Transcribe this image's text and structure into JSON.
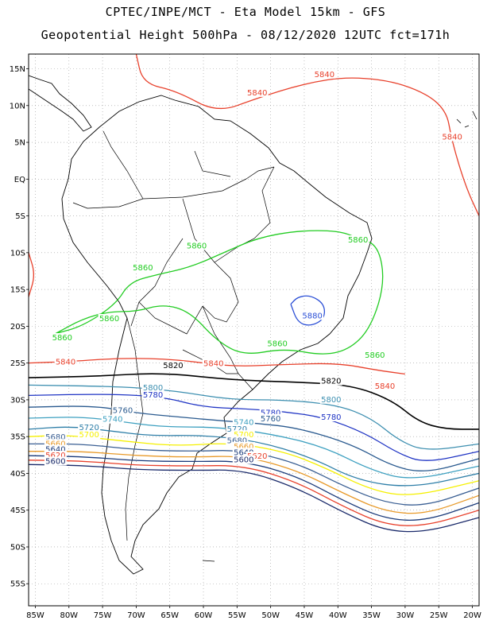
{
  "header": {
    "title": "CPTEC/INPE/MCT -  Eta Model 15km - GFS",
    "subtitle": "Geopotential Height 500hPa - 08/12/2020 12UTC fct=171h"
  },
  "map": {
    "lon_range": [
      -86,
      -19
    ],
    "lat_range": [
      -58,
      17
    ],
    "lat_ticks": [
      {
        "v": 15,
        "label": "15N"
      },
      {
        "v": 10,
        "label": "10N"
      },
      {
        "v": 5,
        "label": "5N"
      },
      {
        "v": 0,
        "label": "EQ"
      },
      {
        "v": -5,
        "label": "5S"
      },
      {
        "v": -10,
        "label": "10S"
      },
      {
        "v": -15,
        "label": "15S"
      },
      {
        "v": -20,
        "label": "20S"
      },
      {
        "v": -25,
        "label": "25S"
      },
      {
        "v": -30,
        "label": "30S"
      },
      {
        "v": -35,
        "label": "35S"
      },
      {
        "v": -40,
        "label": "40S"
      },
      {
        "v": -45,
        "label": "45S"
      },
      {
        "v": -50,
        "label": "50S"
      },
      {
        "v": -55,
        "label": "55S"
      }
    ],
    "lon_ticks": [
      {
        "v": -85,
        "label": "85W"
      },
      {
        "v": -80,
        "label": "80W"
      },
      {
        "v": -75,
        "label": "75W"
      },
      {
        "v": -70,
        "label": "70W"
      },
      {
        "v": -65,
        "label": "65W"
      },
      {
        "v": -60,
        "label": "60W"
      },
      {
        "v": -55,
        "label": "55W"
      },
      {
        "v": -50,
        "label": "50W"
      },
      {
        "v": -45,
        "label": "45W"
      },
      {
        "v": -40,
        "label": "40W"
      },
      {
        "v": -35,
        "label": "35W"
      },
      {
        "v": -30,
        "label": "30W"
      },
      {
        "v": -25,
        "label": "25W"
      },
      {
        "v": -20,
        "label": "20W"
      }
    ],
    "grid": true,
    "contours": [
      {
        "value": "5840",
        "color": "#e8412c",
        "pts": [
          [
            -70,
            17
          ],
          [
            -69,
            13
          ],
          [
            -64,
            12
          ],
          [
            -58,
            9
          ],
          [
            -52,
            11
          ],
          [
            -45,
            13
          ],
          [
            -38,
            14
          ],
          [
            -30,
            13
          ],
          [
            -24,
            10
          ],
          [
            -23,
            5
          ],
          [
            -21,
            -1
          ],
          [
            -19,
            -5
          ]
        ],
        "labels": [
          [
            -52,
            11.5
          ],
          [
            -42,
            14
          ],
          [
            -23,
            5.5
          ]
        ]
      },
      {
        "value": "5840",
        "color": "#e8412c",
        "pts": [
          [
            -86,
            -10
          ],
          [
            -85,
            -13
          ],
          [
            -86,
            -16
          ]
        ],
        "labels": []
      },
      {
        "value": "5860",
        "color": "#22cc22",
        "pts": [
          [
            -82,
            -21
          ],
          [
            -78,
            -19
          ],
          [
            -74,
            -18
          ],
          [
            -70,
            -18
          ],
          [
            -66,
            -17
          ],
          [
            -62,
            -18
          ],
          [
            -58,
            -22
          ],
          [
            -54,
            -24
          ],
          [
            -48,
            -23
          ],
          [
            -42,
            -24
          ],
          [
            -38,
            -23
          ],
          [
            -35,
            -20
          ],
          [
            -33,
            -14
          ],
          [
            -34,
            -9
          ],
          [
            -37,
            -8
          ],
          [
            -40,
            -7
          ],
          [
            -46,
            -7
          ],
          [
            -52,
            -8
          ],
          [
            -57,
            -10
          ],
          [
            -62,
            -12
          ],
          [
            -67,
            -13
          ],
          [
            -71,
            -14
          ],
          [
            -73,
            -17
          ],
          [
            -78,
            -20
          ],
          [
            -82,
            -21
          ]
        ],
        "labels": [
          [
            -61,
            -9.3
          ],
          [
            -69,
            -12.3
          ],
          [
            -37,
            -8.5
          ],
          [
            -74,
            -19.2
          ],
          [
            -81,
            -21.8
          ],
          [
            -49,
            -22.6
          ],
          [
            -34.5,
            -24.2
          ]
        ]
      },
      {
        "value": "5880",
        "color": "#2b4fd6",
        "pts": [
          [
            -47,
            -17
          ],
          [
            -46,
            -16
          ],
          [
            -44,
            -15.8
          ],
          [
            -42,
            -17
          ],
          [
            -42,
            -19
          ],
          [
            -44,
            -20
          ],
          [
            -46,
            -19.5
          ],
          [
            -47,
            -17
          ]
        ],
        "labels": [
          [
            -43.8,
            -18.8
          ]
        ]
      },
      {
        "value": "5840",
        "color": "#e8412c",
        "pts": [
          [
            -86,
            -25
          ],
          [
            -80,
            -24.8
          ],
          [
            -72,
            -24.3
          ],
          [
            -64,
            -24.5
          ],
          [
            -56,
            -25.5
          ],
          [
            -48,
            -25.2
          ],
          [
            -40,
            -25
          ],
          [
            -34,
            -26
          ],
          [
            -30,
            -26.5
          ]
        ],
        "labels": [
          [
            -80.5,
            -25.1
          ],
          [
            -58.5,
            -25.3
          ],
          [
            -33,
            -28.4
          ]
        ]
      },
      {
        "value": "5820",
        "color": "#000000",
        "pts": [
          [
            -86,
            -27
          ],
          [
            -76,
            -26.8
          ],
          [
            -66,
            -26.3
          ],
          [
            -56,
            -27.3
          ],
          [
            -46,
            -27.6
          ],
          [
            -38,
            -28
          ],
          [
            -32,
            -30
          ],
          [
            -28,
            -33
          ],
          [
            -24,
            -34
          ],
          [
            -19,
            -34
          ]
        ],
        "labels": [
          [
            -64.5,
            -25.6
          ],
          [
            -41,
            -27.7
          ]
        ]
      },
      {
        "value": "5800",
        "color": "#3d8fb0",
        "pts": [
          [
            -86,
            -28
          ],
          [
            -72,
            -28.2
          ],
          [
            -64,
            -28.8
          ],
          [
            -56,
            -30
          ],
          [
            -48,
            -30
          ],
          [
            -40,
            -30.7
          ],
          [
            -35,
            -32.5
          ],
          [
            -31,
            -35.5
          ],
          [
            -27,
            -37
          ],
          [
            -19,
            -36
          ]
        ],
        "labels": [
          [
            -67.5,
            -28.6
          ],
          [
            -41,
            -30.2
          ]
        ]
      },
      {
        "value": "5780",
        "color": "#1f34c4",
        "pts": [
          [
            -86,
            -29.4
          ],
          [
            -74,
            -29.2
          ],
          [
            -66,
            -29.6
          ],
          [
            -60,
            -31
          ],
          [
            -54,
            -31.2
          ],
          [
            -48,
            -31.6
          ],
          [
            -42,
            -32.4
          ],
          [
            -36,
            -34.5
          ],
          [
            -31,
            -37.3
          ],
          [
            -27,
            -38.6
          ],
          [
            -19,
            -37
          ]
        ],
        "labels": [
          [
            -67.5,
            -29.6
          ],
          [
            -50,
            -32
          ],
          [
            -41,
            -32.6
          ]
        ]
      },
      {
        "value": "5760",
        "color": "#2a5a8f",
        "pts": [
          [
            -86,
            -31
          ],
          [
            -76,
            -30.8
          ],
          [
            -70,
            -31.8
          ],
          [
            -64,
            -32.3
          ],
          [
            -58,
            -32.8
          ],
          [
            -52,
            -33.2
          ],
          [
            -46,
            -33.8
          ],
          [
            -38,
            -36
          ],
          [
            -32,
            -39
          ],
          [
            -27,
            -40
          ],
          [
            -19,
            -38
          ]
        ],
        "labels": [
          [
            -72,
            -31.7
          ],
          [
            -50,
            -32.8
          ]
        ]
      },
      {
        "value": "5740",
        "color": "#3da0c0",
        "pts": [
          [
            -86,
            -32.5
          ],
          [
            -78,
            -32.3
          ],
          [
            -72,
            -33
          ],
          [
            -66,
            -33.7
          ],
          [
            -58,
            -33.7
          ],
          [
            -50,
            -34.6
          ],
          [
            -42,
            -36.4
          ],
          [
            -35,
            -39.6
          ],
          [
            -29,
            -41
          ],
          [
            -19,
            -39
          ]
        ],
        "labels": [
          [
            -73.5,
            -32.9
          ],
          [
            -54,
            -33.3
          ]
        ]
      },
      {
        "value": "5720",
        "color": "#2f7fa8",
        "pts": [
          [
            -86,
            -34
          ],
          [
            -80,
            -33.6
          ],
          [
            -74,
            -34.2
          ],
          [
            -68,
            -34.9
          ],
          [
            -60,
            -34.8
          ],
          [
            -52,
            -35.6
          ],
          [
            -44,
            -37.8
          ],
          [
            -37,
            -41
          ],
          [
            -29,
            -42
          ],
          [
            -19,
            -40
          ]
        ],
        "labels": [
          [
            -77,
            -34
          ],
          [
            -55,
            -34.2
          ]
        ]
      },
      {
        "value": "5700",
        "color": "#f5f000",
        "pts": [
          [
            -86,
            -35
          ],
          [
            -80,
            -34.8
          ],
          [
            -72,
            -35.6
          ],
          [
            -64,
            -36.3
          ],
          [
            -56,
            -35.8
          ],
          [
            -48,
            -37
          ],
          [
            -42,
            -39.2
          ],
          [
            -35,
            -42.3
          ],
          [
            -29,
            -43.2
          ],
          [
            -19,
            -41
          ]
        ],
        "labels": [
          [
            -77,
            -35
          ],
          [
            -54,
            -35
          ]
        ]
      },
      {
        "value": "5680",
        "color": "#3a5f93",
        "pts": [
          [
            -86,
            -36
          ],
          [
            -78,
            -36
          ],
          [
            -70,
            -36.8
          ],
          [
            -62,
            -37
          ],
          [
            -54,
            -36.8
          ],
          [
            -46,
            -38.6
          ],
          [
            -39,
            -41.8
          ],
          [
            -33,
            -44
          ],
          [
            -27,
            -44.5
          ],
          [
            -19,
            -42
          ]
        ],
        "labels": [
          [
            -82,
            -35.3
          ],
          [
            -55,
            -35.8
          ]
        ]
      },
      {
        "value": "5660",
        "color": "#e89a2a",
        "pts": [
          [
            -86,
            -37
          ],
          [
            -78,
            -37
          ],
          [
            -70,
            -37.6
          ],
          [
            -62,
            -37.8
          ],
          [
            -54,
            -37.6
          ],
          [
            -46,
            -39.6
          ],
          [
            -39,
            -42.8
          ],
          [
            -33,
            -45.2
          ],
          [
            -27,
            -45.6
          ],
          [
            -19,
            -43
          ]
        ],
        "labels": [
          [
            -82,
            -36.2
          ],
          [
            -54,
            -36.6
          ]
        ]
      },
      {
        "value": "5640",
        "color": "#1a3a7a",
        "pts": [
          [
            -86,
            -37.6
          ],
          [
            -78,
            -37.7
          ],
          [
            -70,
            -38.3
          ],
          [
            -62,
            -38.4
          ],
          [
            -54,
            -38.3
          ],
          [
            -46,
            -40.4
          ],
          [
            -39,
            -43.8
          ],
          [
            -33,
            -46.2
          ],
          [
            -27,
            -46.5
          ],
          [
            -19,
            -44
          ]
        ],
        "labels": [
          [
            -82,
            -37
          ],
          [
            -54,
            -37.4
          ]
        ]
      },
      {
        "value": "5620",
        "color": "#e8412c",
        "pts": [
          [
            -86,
            -38.2
          ],
          [
            -78,
            -38.3
          ],
          [
            -70,
            -38.9
          ],
          [
            -62,
            -39
          ],
          [
            -54,
            -38.9
          ],
          [
            -46,
            -41.2
          ],
          [
            -39,
            -44.6
          ],
          [
            -33,
            -47
          ],
          [
            -27,
            -47.2
          ],
          [
            -19,
            -45
          ]
        ],
        "labels": [
          [
            -82,
            -37.8
          ],
          [
            -52,
            -37.9
          ]
        ]
      },
      {
        "value": "5600",
        "color": "#1a2a6a",
        "pts": [
          [
            -86,
            -38.8
          ],
          [
            -78,
            -38.9
          ],
          [
            -70,
            -39.5
          ],
          [
            -62,
            -39.6
          ],
          [
            -54,
            -39.5
          ],
          [
            -46,
            -42
          ],
          [
            -39,
            -45.4
          ],
          [
            -33,
            -47.8
          ],
          [
            -27,
            -48
          ],
          [
            -19,
            -46
          ]
        ],
        "labels": [
          [
            -82,
            -38.6
          ],
          [
            -54,
            -38.4
          ]
        ]
      }
    ]
  }
}
